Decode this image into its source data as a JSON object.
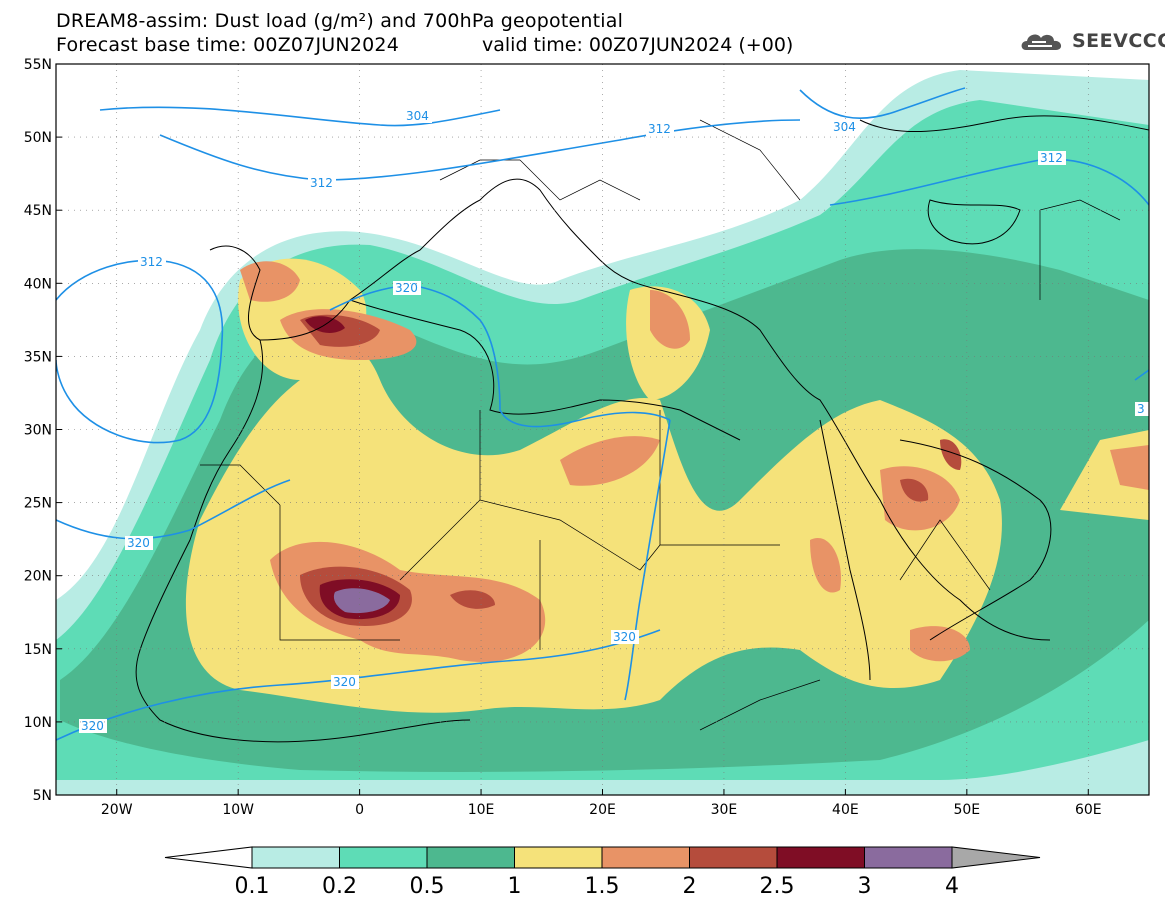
{
  "title": {
    "line1": "DREAM8-assim: Dust load (g/m²) and 700hPa geopotential",
    "line2": "Forecast base time: 00Z07JUN2024",
    "valid": "valid time: 00Z07JUN2024 (+00)"
  },
  "logo": {
    "text": "SEEVCCC",
    "icon": "cloud-icon"
  },
  "map": {
    "lon_range": [
      -25,
      65
    ],
    "lat_range": [
      5,
      55
    ],
    "lon_ticks": [
      "20W",
      "10W",
      "0",
      "10E",
      "20E",
      "30E",
      "40E",
      "50E",
      "60E"
    ],
    "lat_ticks": [
      "55N",
      "50N",
      "45N",
      "40N",
      "35N",
      "30N",
      "25N",
      "20N",
      "15N",
      "10N",
      "5N"
    ],
    "contour_labels": [
      "304",
      "304",
      "312",
      "312",
      "312",
      "312",
      "320",
      "320",
      "320",
      "320",
      "320",
      "3"
    ]
  },
  "colorbar": {
    "levels": [
      "0.1",
      "0.2",
      "0.5",
      "1",
      "1.5",
      "2",
      "2.5",
      "3",
      "4"
    ],
    "colors": [
      "#ffffff",
      "#b8ece4",
      "#5edcb6",
      "#4db88f",
      "#f5e27a",
      "#e89366",
      "#b54c3c",
      "#7f0d25",
      "#8a6b9e",
      "#a8a8a8"
    ]
  }
}
